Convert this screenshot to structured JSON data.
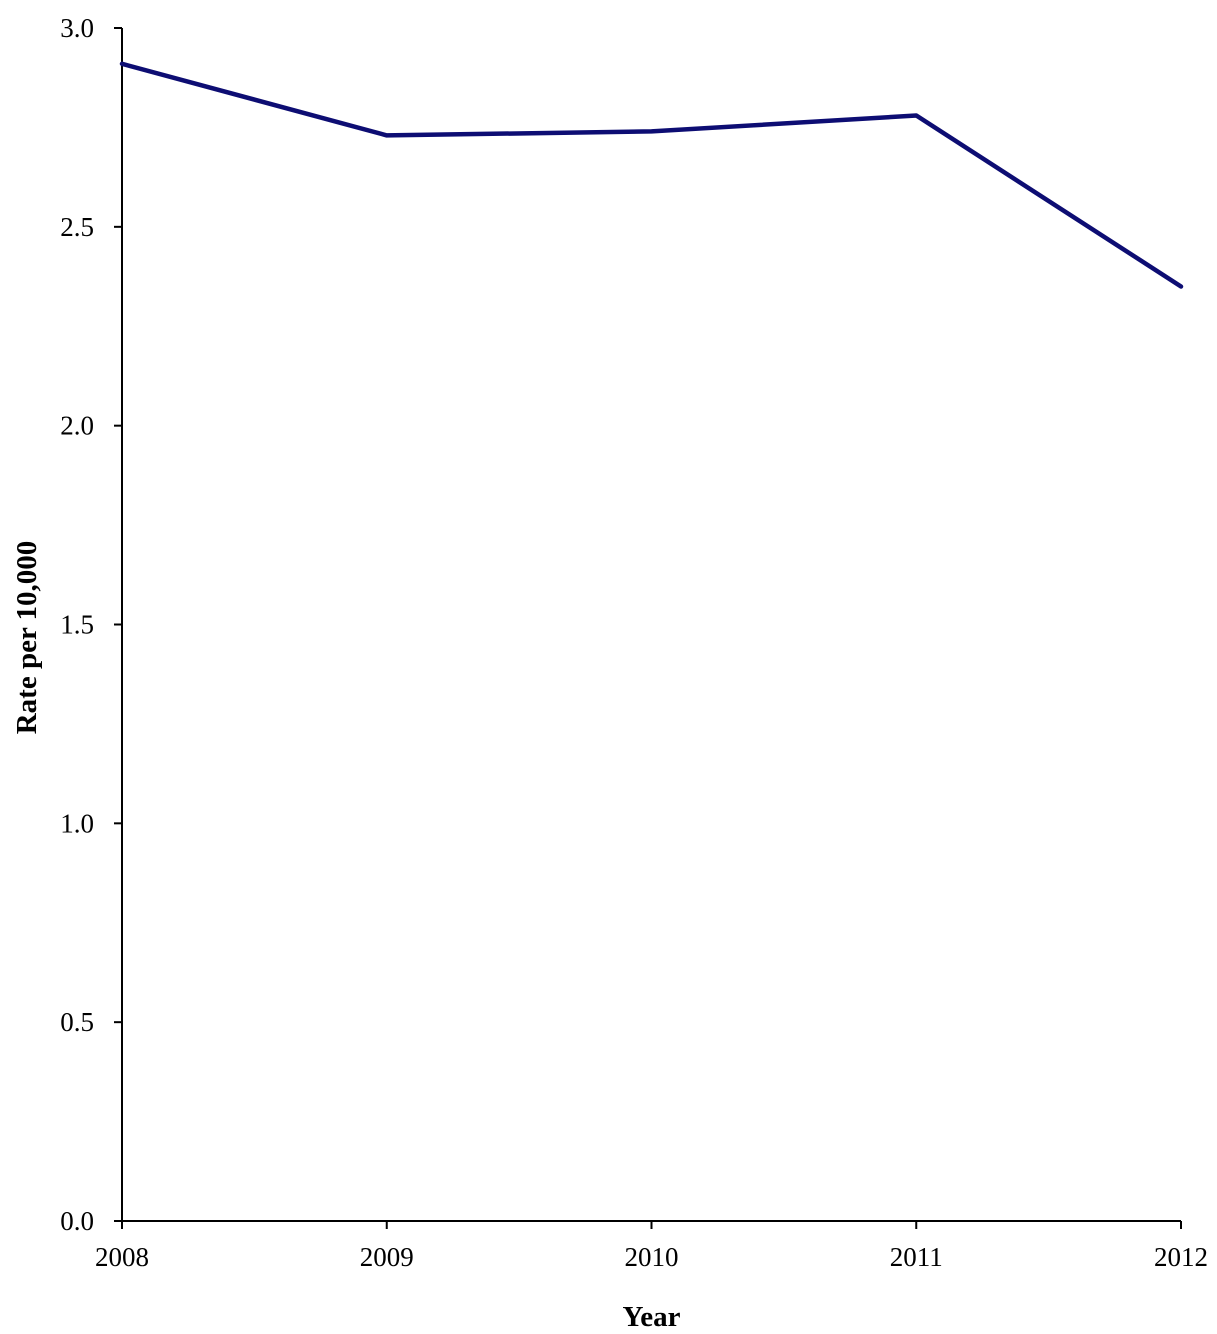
{
  "chart_data": {
    "type": "line",
    "title": "",
    "xlabel": "Year",
    "ylabel": "Rate per 10,000",
    "categories": [
      "2008",
      "2009",
      "2010",
      "2011",
      "2012"
    ],
    "series": [
      {
        "values": [
          2.91,
          2.73,
          2.74,
          2.78,
          2.35
        ],
        "color": "#0d0d73"
      }
    ],
    "ylim": [
      0,
      3.0
    ],
    "yticks": [
      "0.0",
      "0.5",
      "1.0",
      "1.5",
      "2.0",
      "2.5",
      "3.0"
    ],
    "grid": false,
    "legend": "none"
  }
}
